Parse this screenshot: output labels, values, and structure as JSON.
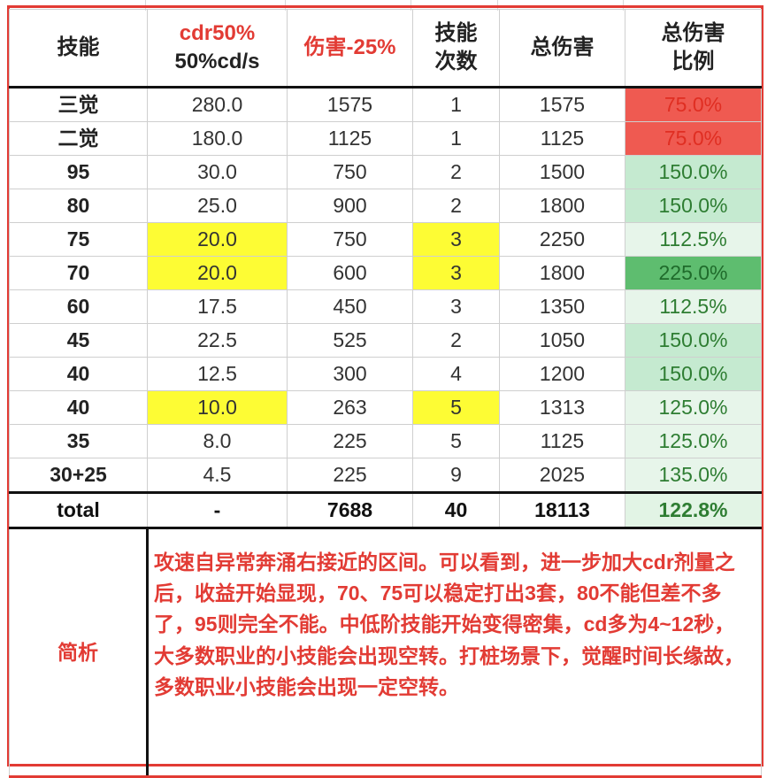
{
  "table": {
    "headers": [
      {
        "line1": "技能",
        "line2": ""
      },
      {
        "line1": "cdr50%",
        "line2": "50%cd/s"
      },
      {
        "line1": "伤害-25%",
        "line2": ""
      },
      {
        "line1": "技能",
        "line2": "次数"
      },
      {
        "line1": "总伤害",
        "line2": ""
      },
      {
        "line1": "总伤害",
        "line2": "比例"
      }
    ],
    "rows": [
      {
        "skill": "三觉",
        "cd": "280.0",
        "damage": "1575",
        "count": "1",
        "total": "1575",
        "ratio": "75.0%"
      },
      {
        "skill": "二觉",
        "cd": "180.0",
        "damage": "1125",
        "count": "1",
        "total": "1125",
        "ratio": "75.0%"
      },
      {
        "skill": "95",
        "cd": "30.0",
        "damage": "750",
        "count": "2",
        "total": "1500",
        "ratio": "150.0%"
      },
      {
        "skill": "80",
        "cd": "25.0",
        "damage": "900",
        "count": "2",
        "total": "1800",
        "ratio": "150.0%"
      },
      {
        "skill": "75",
        "cd": "20.0",
        "damage": "750",
        "count": "3",
        "total": "2250",
        "ratio": "112.5%"
      },
      {
        "skill": "70",
        "cd": "20.0",
        "damage": "600",
        "count": "3",
        "total": "1800",
        "ratio": "225.0%"
      },
      {
        "skill": "60",
        "cd": "17.5",
        "damage": "450",
        "count": "3",
        "total": "1350",
        "ratio": "112.5%"
      },
      {
        "skill": "45",
        "cd": "22.5",
        "damage": "525",
        "count": "2",
        "total": "1050",
        "ratio": "150.0%"
      },
      {
        "skill": "40",
        "cd": "12.5",
        "damage": "300",
        "count": "4",
        "total": "1200",
        "ratio": "150.0%"
      },
      {
        "skill": "40",
        "cd": "10.0",
        "damage": "263",
        "count": "5",
        "total": "1313",
        "ratio": "125.0%"
      },
      {
        "skill": "35",
        "cd": "8.0",
        "damage": "225",
        "count": "5",
        "total": "1125",
        "ratio": "125.0%"
      },
      {
        "skill": "30+25",
        "cd": "4.5",
        "damage": "225",
        "count": "9",
        "total": "2025",
        "ratio": "135.0%"
      }
    ],
    "total_row": {
      "label": "total",
      "cd": "-",
      "damage": "7688",
      "count": "40",
      "total": "18113",
      "ratio": "122.8%"
    }
  },
  "note": {
    "label": "简析",
    "text": "攻速自异常奔涌右接近的区间。可以看到，进一步加大cdr剂量之后，收益开始显现，70、75可以稳定打出3套，80不能但差不多了，95则完全不能。中低阶技能开始变得密集，cd多为4~12秒，大多数职业的小技能会出现空转。打桩场景下，觉醒时间长缘故，多数职业小技能会出现一定空转。"
  },
  "colors": {
    "accent_red": "#e23b34",
    "highlight_yellow": "#fdfc34",
    "ratio_red_fill": "#ef5a51",
    "ratio_green_light": "#c5ead0",
    "ratio_green_pale": "#e7f5ea",
    "ratio_green_dark": "#5ebd6f"
  }
}
